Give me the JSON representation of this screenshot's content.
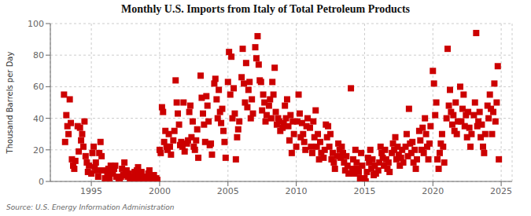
{
  "chart_data": {
    "type": "scatter",
    "title": "Monthly U.S. Imports from Italy of Total Petroleum Products",
    "y_label": "Thousand Barrels per Day",
    "annotations": [
      "Source: U.S. Energy Information Administration"
    ],
    "color": "#cc0000",
    "marker": "square",
    "grid": true,
    "xlim": [
      1992.0,
      2025.8
    ],
    "ylim": [
      0,
      100
    ],
    "xticks": [
      1995,
      2000,
      2005,
      2010,
      2015,
      2020,
      2025
    ],
    "yticks": [
      0,
      20,
      40,
      60,
      80,
      100
    ],
    "x": [
      1993.0,
      1993.08,
      1993.17,
      1993.25,
      1993.33,
      1993.42,
      1993.5,
      1993.58,
      1993.67,
      1993.75,
      1993.83,
      1994.0,
      1994.08,
      1994.17,
      1994.25,
      1994.33,
      1994.42,
      1994.5,
      1994.58,
      1994.67,
      1994.75,
      1994.83,
      1995.0,
      1995.08,
      1995.17,
      1995.25,
      1995.33,
      1995.42,
      1995.5,
      1995.58,
      1995.67,
      1995.75,
      1995.83,
      1996.0,
      1996.08,
      1996.17,
      1996.25,
      1996.33,
      1996.42,
      1996.5,
      1996.58,
      1996.67,
      1996.75,
      1996.83,
      1997.0,
      1997.08,
      1997.17,
      1997.25,
      1997.33,
      1997.42,
      1997.5,
      1997.58,
      1997.67,
      1997.75,
      1997.83,
      1998.0,
      1998.08,
      1998.17,
      1998.25,
      1998.33,
      1998.42,
      1998.5,
      1998.58,
      1998.67,
      1998.75,
      1998.83,
      1999.0,
      1999.08,
      1999.17,
      1999.25,
      1999.33,
      1999.42,
      1999.5,
      1999.58,
      1999.67,
      1999.75,
      1999.83,
      2000.0,
      2000.08,
      2000.17,
      2000.25,
      2000.33,
      2000.42,
      2000.5,
      2000.58,
      2000.67,
      2000.75,
      2000.83,
      2001.0,
      2001.08,
      2001.17,
      2001.25,
      2001.33,
      2001.42,
      2001.5,
      2001.58,
      2001.67,
      2001.75,
      2001.83,
      2002.0,
      2002.08,
      2002.17,
      2002.25,
      2002.33,
      2002.42,
      2002.5,
      2002.58,
      2002.67,
      2002.75,
      2002.83,
      2003.0,
      2003.08,
      2003.17,
      2003.25,
      2003.33,
      2003.42,
      2003.5,
      2003.58,
      2003.67,
      2003.75,
      2003.83,
      2004.0,
      2004.08,
      2004.17,
      2004.25,
      2004.33,
      2004.42,
      2004.5,
      2004.58,
      2004.67,
      2004.75,
      2004.83,
      2005.0,
      2005.08,
      2005.17,
      2005.25,
      2005.33,
      2005.42,
      2005.5,
      2005.58,
      2005.67,
      2005.75,
      2005.83,
      2006.0,
      2006.08,
      2006.17,
      2006.25,
      2006.33,
      2006.42,
      2006.5,
      2006.58,
      2006.67,
      2006.75,
      2006.83,
      2007.0,
      2007.08,
      2007.17,
      2007.25,
      2007.33,
      2007.42,
      2007.5,
      2007.58,
      2007.67,
      2007.75,
      2007.83,
      2008.0,
      2008.08,
      2008.17,
      2008.25,
      2008.33,
      2008.42,
      2008.5,
      2008.58,
      2008.67,
      2008.75,
      2008.83,
      2009.0,
      2009.08,
      2009.17,
      2009.25,
      2009.33,
      2009.42,
      2009.5,
      2009.58,
      2009.67,
      2009.75,
      2009.83,
      2010.0,
      2010.08,
      2010.17,
      2010.25,
      2010.33,
      2010.42,
      2010.5,
      2010.58,
      2010.67,
      2010.75,
      2010.83,
      2011.0,
      2011.08,
      2011.17,
      2011.25,
      2011.33,
      2011.42,
      2011.5,
      2011.58,
      2011.67,
      2011.75,
      2011.83,
      2012.0,
      2012.08,
      2012.17,
      2012.25,
      2012.33,
      2012.42,
      2012.5,
      2012.58,
      2012.67,
      2012.75,
      2012.83,
      2013.0,
      2013.08,
      2013.17,
      2013.25,
      2013.33,
      2013.42,
      2013.5,
      2013.58,
      2013.67,
      2013.75,
      2013.83,
      2014.0,
      2014.08,
      2014.17,
      2014.25,
      2014.33,
      2014.42,
      2014.5,
      2014.58,
      2014.67,
      2014.75,
      2014.83,
      2015.0,
      2015.08,
      2015.17,
      2015.25,
      2015.33,
      2015.42,
      2015.5,
      2015.58,
      2015.67,
      2015.75,
      2015.83,
      2016.0,
      2016.08,
      2016.17,
      2016.25,
      2016.33,
      2016.42,
      2016.5,
      2016.58,
      2016.67,
      2016.75,
      2016.83,
      2017.0,
      2017.08,
      2017.17,
      2017.25,
      2017.33,
      2017.42,
      2017.5,
      2017.58,
      2017.67,
      2017.75,
      2017.83,
      2018.0,
      2018.08,
      2018.17,
      2018.25,
      2018.33,
      2018.42,
      2018.5,
      2018.58,
      2018.67,
      2018.75,
      2018.83,
      2019.0,
      2019.08,
      2019.17,
      2019.25,
      2019.33,
      2019.42,
      2019.5,
      2019.58,
      2019.67,
      2019.75,
      2019.83,
      2020.0,
      2020.08,
      2020.17,
      2020.25,
      2020.33,
      2020.42,
      2020.5,
      2020.58,
      2020.67,
      2020.75,
      2020.83,
      2021.0,
      2021.08,
      2021.17,
      2021.25,
      2021.33,
      2021.42,
      2021.5,
      2021.58,
      2021.67,
      2021.75,
      2021.83,
      2022.0,
      2022.08,
      2022.17,
      2022.25,
      2022.33,
      2022.42,
      2022.5,
      2022.58,
      2022.67,
      2022.75,
      2022.83,
      2023.0,
      2023.08,
      2023.17,
      2023.25,
      2023.33,
      2023.42,
      2023.5,
      2023.58,
      2023.67,
      2023.75,
      2023.83,
      2024.0,
      2024.08,
      2024.17,
      2024.25,
      2024.33,
      2024.42,
      2024.5,
      2024.58,
      2024.67,
      2024.75,
      2024.83
    ],
    "values": [
      55,
      25,
      42,
      35,
      30,
      52,
      37,
      14,
      10,
      8,
      13,
      35,
      19,
      34,
      26,
      30,
      22,
      38,
      16,
      12,
      6,
      10,
      5,
      18,
      22,
      9,
      12,
      7,
      3,
      18,
      25,
      16,
      7,
      2,
      0,
      5,
      8,
      2,
      10,
      6,
      5,
      8,
      10,
      3,
      1,
      0,
      3,
      8,
      4,
      12,
      6,
      7,
      3,
      5,
      0,
      1,
      3,
      6,
      2,
      7,
      9,
      4,
      2,
      6,
      0,
      3,
      0,
      2,
      5,
      7,
      3,
      1,
      0,
      4,
      0,
      2,
      1,
      20,
      18,
      47,
      44,
      25,
      32,
      22,
      20,
      30,
      22,
      17,
      26,
      32,
      64,
      50,
      43,
      36,
      23,
      25,
      22,
      50,
      19,
      24,
      26,
      44,
      48,
      28,
      38,
      22,
      20,
      26,
      33,
      15,
      67,
      53,
      43,
      36,
      25,
      54,
      48,
      38,
      23,
      24,
      17,
      62,
      65,
      52,
      40,
      58,
      44,
      37,
      46,
      32,
      25,
      15,
      63,
      82,
      55,
      79,
      40,
      59,
      43,
      14,
      28,
      33,
      38,
      66,
      84,
      62,
      50,
      75,
      47,
      58,
      63,
      40,
      52,
      43,
      85,
      78,
      92,
      74,
      64,
      63,
      45,
      55,
      50,
      38,
      42,
      48,
      52,
      40,
      63,
      55,
      72,
      44,
      36,
      40,
      38,
      32,
      34,
      37,
      48,
      40,
      52,
      35,
      26,
      42,
      18,
      38,
      30,
      22,
      38,
      55,
      43,
      28,
      37,
      30,
      25,
      20,
      35,
      40,
      34,
      22,
      18,
      38,
      28,
      45,
      22,
      30,
      14,
      25,
      18,
      15,
      20,
      36,
      28,
      35,
      22,
      30,
      14,
      18,
      12,
      8,
      16,
      24,
      20,
      15,
      22,
      18,
      12,
      7,
      16,
      10,
      5,
      59,
      8,
      14,
      5,
      20,
      12,
      8,
      6,
      2,
      18,
      10,
      2,
      0,
      6,
      15,
      12,
      20,
      8,
      14,
      4,
      10,
      5,
      7,
      12,
      22,
      18,
      15,
      10,
      20,
      14,
      8,
      12,
      6,
      18,
      24,
      20,
      28,
      14,
      22,
      17,
      10,
      15,
      20,
      12,
      22,
      30,
      16,
      46,
      24,
      18,
      25,
      12,
      20,
      8,
      14,
      32,
      26,
      20,
      34,
      18,
      40,
      30,
      22,
      14,
      24,
      35,
      70,
      62,
      42,
      50,
      14,
      8,
      18,
      24,
      30,
      22,
      12,
      40,
      84,
      48,
      58,
      44,
      36,
      42,
      32,
      50,
      30,
      38,
      60,
      38,
      46,
      55,
      35,
      42,
      28,
      44,
      34,
      22,
      30,
      42,
      50,
      94,
      35,
      38,
      44,
      28,
      36,
      22,
      18,
      30,
      48,
      40,
      55,
      46,
      30,
      44,
      62,
      38,
      50,
      73,
      14
    ]
  }
}
